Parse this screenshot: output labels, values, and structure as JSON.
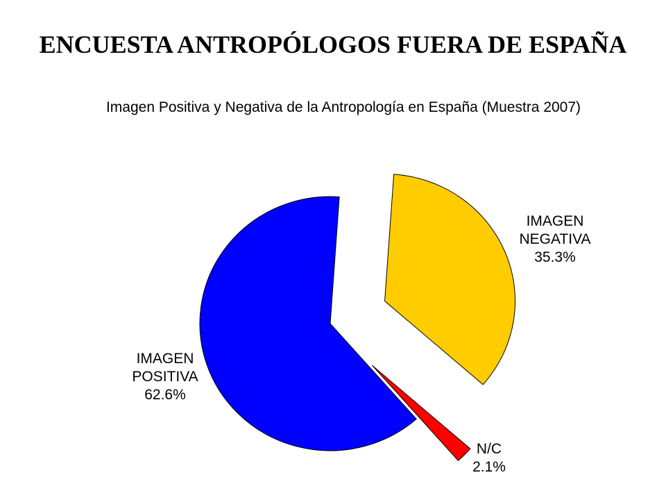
{
  "slide": {
    "title": "ENCUESTA ANTROPÓLOGOS FUERA DE ESPAÑA"
  },
  "chart_data": {
    "type": "pie",
    "title": "Imagen Positiva y Negativa de la Antropología en España (Muestra 2007)",
    "slices": [
      {
        "label": "IMAGEN NEGATIVA",
        "line1": "IMAGEN",
        "line2": "NEGATIVA",
        "value": 35.3,
        "value_label": "35.3%",
        "color": "#FFCC00",
        "exploded": true
      },
      {
        "label": "N/C",
        "line1": "N/C",
        "line2": "",
        "value": 2.1,
        "value_label": "2.1%",
        "color": "#FF0000",
        "exploded": true
      },
      {
        "label": "IMAGEN POSITIVA",
        "line1": "IMAGEN",
        "line2": "POSITIVA",
        "value": 62.6,
        "value_label": "62.6%",
        "color": "#0000FF",
        "exploded": false
      }
    ],
    "start_angle_deg": 4,
    "direction": "clockwise",
    "legend": "none"
  }
}
